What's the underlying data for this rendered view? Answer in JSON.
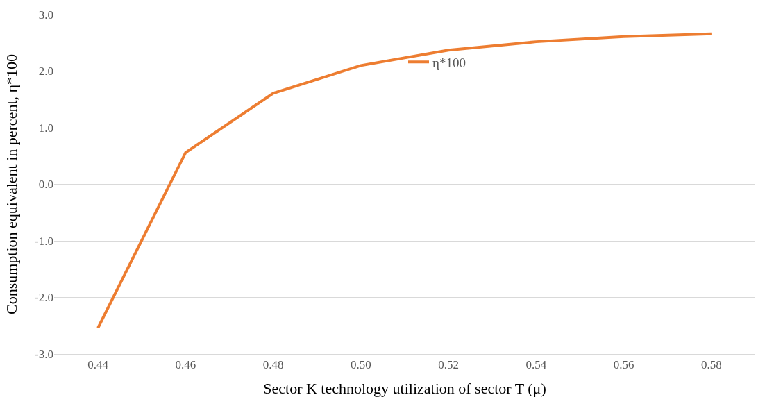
{
  "chart_data": {
    "type": "line",
    "xlabel": "Sector K technology utilization of sector T (μ)",
    "ylabel": "Consumption equivalent in percent, η*100",
    "categories": [
      "0.44",
      "0.46",
      "0.48",
      "0.50",
      "0.52",
      "0.54",
      "0.56",
      "0.58"
    ],
    "series": [
      {
        "name": "η*100",
        "color": "#ed7d31",
        "values": [
          -2.54,
          0.56,
          1.61,
          2.1,
          2.37,
          2.52,
          2.61,
          2.66
        ]
      }
    ],
    "ylim": [
      -3,
      3
    ],
    "yticks": [
      {
        "value": -3,
        "label": "-3.0"
      },
      {
        "value": -2,
        "label": "-2.0"
      },
      {
        "value": -1,
        "label": "-1.0"
      },
      {
        "value": 0,
        "label": "0.0"
      },
      {
        "value": 1,
        "label": "1.0"
      },
      {
        "value": 2,
        "label": "2.0"
      },
      {
        "value": 3,
        "label": "3.0"
      }
    ],
    "grid": "y",
    "legend": "top",
    "marker": "none",
    "line_style": "solid"
  }
}
